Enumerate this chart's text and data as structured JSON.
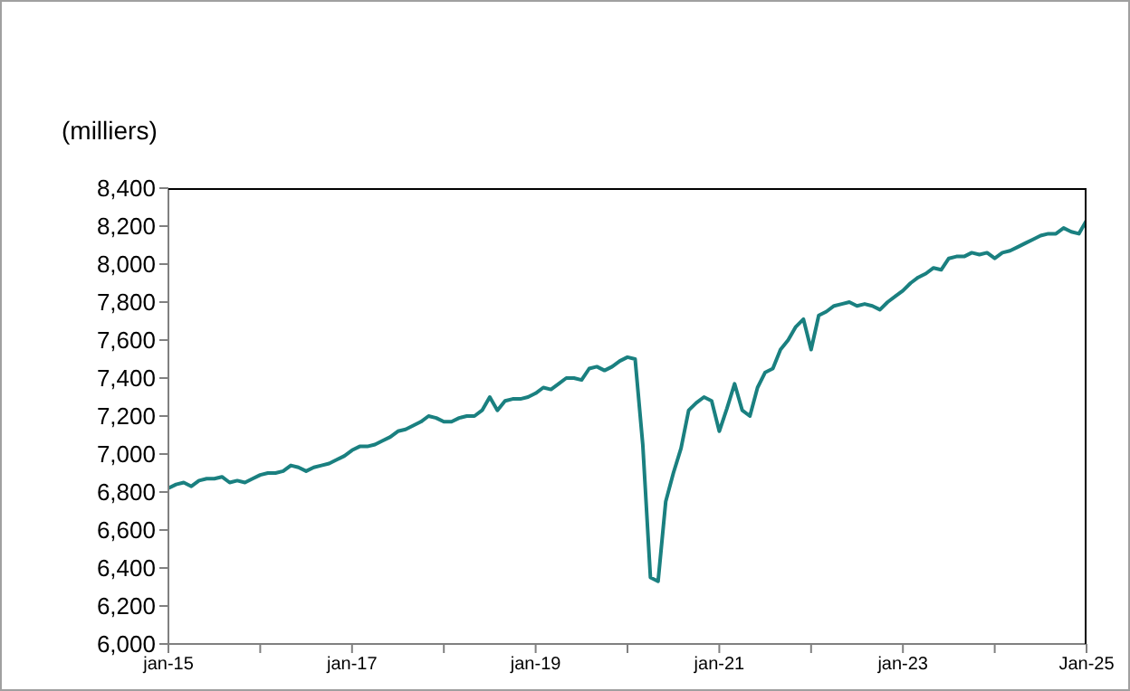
{
  "chart_data": {
    "type": "line",
    "ylabel": "(milliers)",
    "x": [
      "2015-01",
      "2015-02",
      "2015-03",
      "2015-04",
      "2015-05",
      "2015-06",
      "2015-07",
      "2015-08",
      "2015-09",
      "2015-10",
      "2015-11",
      "2015-12",
      "2016-01",
      "2016-02",
      "2016-03",
      "2016-04",
      "2016-05",
      "2016-06",
      "2016-07",
      "2016-08",
      "2016-09",
      "2016-10",
      "2016-11",
      "2016-12",
      "2017-01",
      "2017-02",
      "2017-03",
      "2017-04",
      "2017-05",
      "2017-06",
      "2017-07",
      "2017-08",
      "2017-09",
      "2017-10",
      "2017-11",
      "2017-12",
      "2018-01",
      "2018-02",
      "2018-03",
      "2018-04",
      "2018-05",
      "2018-06",
      "2018-07",
      "2018-08",
      "2018-09",
      "2018-10",
      "2018-11",
      "2018-12",
      "2019-01",
      "2019-02",
      "2019-03",
      "2019-04",
      "2019-05",
      "2019-06",
      "2019-07",
      "2019-08",
      "2019-09",
      "2019-10",
      "2019-11",
      "2019-12",
      "2020-01",
      "2020-02",
      "2020-03",
      "2020-04",
      "2020-05",
      "2020-06",
      "2020-07",
      "2020-08",
      "2020-09",
      "2020-10",
      "2020-11",
      "2020-12",
      "2021-01",
      "2021-02",
      "2021-03",
      "2021-04",
      "2021-05",
      "2021-06",
      "2021-07",
      "2021-08",
      "2021-09",
      "2021-10",
      "2021-11",
      "2021-12",
      "2022-01",
      "2022-02",
      "2022-03",
      "2022-04",
      "2022-05",
      "2022-06",
      "2022-07",
      "2022-08",
      "2022-09",
      "2022-10",
      "2022-11",
      "2022-12",
      "2023-01",
      "2023-02",
      "2023-03",
      "2023-04",
      "2023-05",
      "2023-06",
      "2023-07",
      "2023-08",
      "2023-09",
      "2023-10",
      "2023-11",
      "2023-12",
      "2024-01",
      "2024-02",
      "2024-03",
      "2024-04",
      "2024-05",
      "2024-06",
      "2024-07",
      "2024-08",
      "2024-09",
      "2024-10",
      "2024-11",
      "2024-12",
      "2025-01"
    ],
    "series": [
      {
        "color": "#1a8080",
        "values": [
          6820,
          6840,
          6850,
          6830,
          6860,
          6870,
          6870,
          6880,
          6850,
          6860,
          6850,
          6870,
          6890,
          6900,
          6900,
          6910,
          6940,
          6930,
          6910,
          6930,
          6940,
          6950,
          6970,
          6990,
          7020,
          7040,
          7040,
          7050,
          7070,
          7090,
          7120,
          7130,
          7150,
          7170,
          7200,
          7190,
          7170,
          7170,
          7190,
          7200,
          7200,
          7230,
          7300,
          7230,
          7280,
          7290,
          7290,
          7300,
          7320,
          7350,
          7340,
          7370,
          7400,
          7400,
          7390,
          7450,
          7460,
          7440,
          7460,
          7490,
          7510,
          7500,
          7050,
          6350,
          6330,
          6750,
          6900,
          7030,
          7230,
          7270,
          7300,
          7280,
          7120,
          7240,
          7370,
          7230,
          7200,
          7350,
          7430,
          7450,
          7550,
          7600,
          7670,
          7710,
          7550,
          7730,
          7750,
          7780,
          7790,
          7800,
          7780,
          7790,
          7780,
          7760,
          7800,
          7830,
          7860,
          7900,
          7930,
          7950,
          7980,
          7970,
          8030,
          8040,
          8040,
          8060,
          8050,
          8060,
          8030,
          8060,
          8070,
          8090,
          8110,
          8130,
          8150,
          8160,
          8160,
          8190,
          8170,
          8160,
          8230
        ]
      }
    ],
    "xlim": [
      "2015-01",
      "2025-01"
    ],
    "xticks": [
      {
        "value": "2015-01",
        "label": "jan-15"
      },
      {
        "value": "2016-01",
        "label": null
      },
      {
        "value": "2017-01",
        "label": "jan-17"
      },
      {
        "value": "2018-01",
        "label": null
      },
      {
        "value": "2019-01",
        "label": "jan-19"
      },
      {
        "value": "2020-01",
        "label": null
      },
      {
        "value": "2021-01",
        "label": "jan-21"
      },
      {
        "value": "2022-01",
        "label": null
      },
      {
        "value": "2023-01",
        "label": "jan-23"
      },
      {
        "value": "2024-01",
        "label": null
      },
      {
        "value": "2025-01",
        "label": "Jan-25"
      }
    ],
    "ylim": [
      6000,
      8400
    ],
    "yticks": [
      {
        "value": 6000,
        "label": "6,000"
      },
      {
        "value": 6200,
        "label": "6,200"
      },
      {
        "value": 6400,
        "label": "6,400"
      },
      {
        "value": 6600,
        "label": "6,600"
      },
      {
        "value": 6800,
        "label": "6,800"
      },
      {
        "value": 7000,
        "label": "7,000"
      },
      {
        "value": 7200,
        "label": "7,200"
      },
      {
        "value": 7400,
        "label": "7,400"
      },
      {
        "value": 7600,
        "label": "7,600"
      },
      {
        "value": 7800,
        "label": "7,800"
      },
      {
        "value": 8000,
        "label": "8,000"
      },
      {
        "value": 8200,
        "label": "8,200"
      },
      {
        "value": 8400,
        "label": "8,400"
      }
    ]
  }
}
